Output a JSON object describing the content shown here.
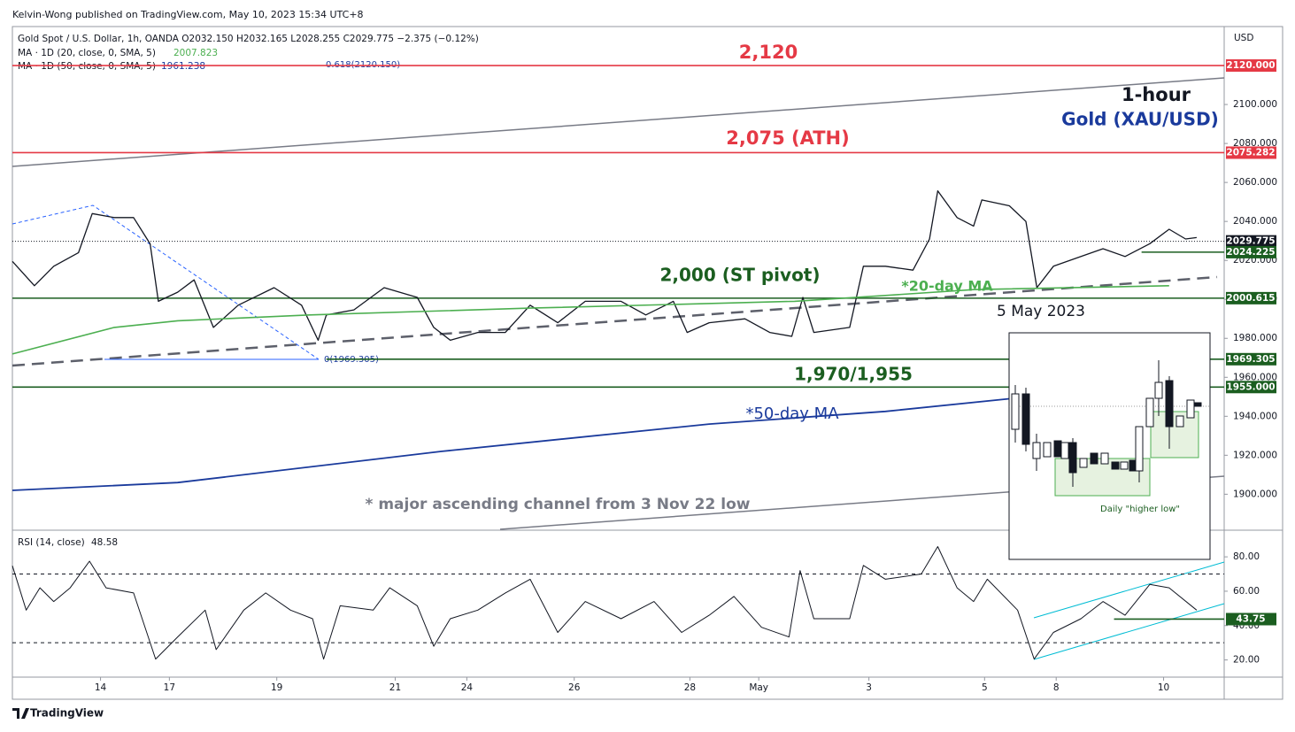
{
  "header": {
    "publisher": "Kelvin-Wong published on TradingView.com, May 10, 2023 15:34 UTC+8",
    "symbol": "Gold Spot / U.S. Dollar, 1h, OANDA  O2032.150  H2032.165  L2028.255  C2029.775  −2.375 (−0.12%)",
    "ma20_label": "MA · 1D (20, close, 0, SMA, 5)",
    "ma20_value": 2007.823,
    "ma50_label": "MA · 1D (50, close, 0, SMA, 5)",
    "ma50_value": 1961.238,
    "fib_top": "0.618(2120.150)",
    "fib_bottom": "0(1969.305)",
    "currency": "USD",
    "brand": "TradingView"
  },
  "chart_data": [
    {
      "type": "line",
      "annotations": [
        "2,120",
        "2,075 (ATH)",
        "1-hour",
        "Gold (XAU/USD)",
        "2,000 (ST pivot)",
        "*20-day MA",
        "5 May 2023",
        "1,970/1,955",
        "*50-day MA",
        "* major ascending channel from 3 Nov 22 low",
        "Daily \"higher low\""
      ],
      "xlim": [
        0,
        440
      ],
      "ylim": [
        1882,
        2140
      ],
      "yticks": [
        {
          "value": 1900,
          "label": "1900.000"
        },
        {
          "value": 1920,
          "label": "1920.000"
        },
        {
          "value": 1940,
          "label": "1940.000"
        },
        {
          "value": 1960,
          "label": "1960.000"
        },
        {
          "value": 1980,
          "label": "1980.000"
        },
        {
          "value": 2000,
          "label": "2000.000"
        },
        {
          "value": 2020,
          "label": "2020.000"
        },
        {
          "value": 2040,
          "label": "2040.000"
        },
        {
          "value": 2060,
          "label": "2060.000"
        },
        {
          "value": 2080,
          "label": "2080.000"
        },
        {
          "value": 2100,
          "label": "2100.000"
        }
      ],
      "levels": [
        {
          "value": 2120,
          "label": "2120.000",
          "color": "#e53945"
        },
        {
          "value": 2075.282,
          "label": "2075.282",
          "color": "#e53945"
        },
        {
          "value": 2029.775,
          "label": "2029.775",
          "color": "#131722",
          "style": "dotted"
        },
        {
          "value": 2024.225,
          "label": "2024.225",
          "color": "#1b5e20",
          "x_start": 410
        },
        {
          "value": 2000.615,
          "label": "2000.615",
          "color": "#1b5e20"
        },
        {
          "value": 1969.305,
          "label": "1969.305",
          "color": "#1b5e20",
          "x_start": 114
        },
        {
          "value": 1955,
          "label": "1955.000",
          "color": "#1b5e20"
        }
      ],
      "series": [
        {
          "name": "Gold Spot / U.S. Dollar",
          "color": "#131722",
          "width": 1.3,
          "x": [
            0,
            8,
            15,
            24,
            29,
            37,
            44,
            50,
            53,
            60,
            66,
            73,
            82,
            95,
            105,
            111,
            114,
            124,
            135,
            147,
            153,
            159,
            169,
            179,
            188,
            198,
            208,
            221,
            230,
            240,
            245,
            253,
            266,
            275,
            283,
            287,
            291,
            304,
            309,
            317,
            327,
            333,
            336,
            343,
            349,
            352,
            362,
            368,
            372,
            378,
            388,
            396,
            404,
            413,
            420,
            426,
            430
          ],
          "values": [
            2019.5,
            2007,
            2017,
            2024,
            2044,
            2042,
            2042,
            2028.5,
            1999,
            2003.7,
            2010,
            1985.6,
            1997,
            2006,
            1997,
            1979,
            1992,
            1994.6,
            2006,
            2001,
            1985.6,
            1979,
            1983,
            1983,
            1997,
            1988,
            1999,
            1999,
            1992,
            1999,
            1983,
            1988,
            1990,
            1983,
            1981,
            2001,
            1983,
            1985.6,
            2017,
            2017,
            2015,
            2031,
            2055.7,
            2042,
            2037.6,
            2051,
            2048,
            2040,
            2006,
            2017,
            2022,
            2026,
            2022,
            2028.6,
            2036,
            2031,
            2031.7
          ]
        },
        {
          "name": "MA 20",
          "color": "#4caf50",
          "width": 1.6,
          "x": [
            0,
            37,
            60,
            108,
            188,
            284,
            317,
            349,
            420
          ],
          "values": [
            1972,
            1985.6,
            1989,
            1992,
            1995.5,
            1999,
            2002,
            2005,
            2007
          ]
        },
        {
          "name": "MA 50",
          "color": "#1a3a9c",
          "width": 1.8,
          "x": [
            0,
            60,
            156,
            253,
            317,
            362
          ],
          "values": [
            1902,
            1906,
            1922,
            1936,
            1942.5,
            1949
          ]
        }
      ]
    },
    {
      "type": "line",
      "title": "RSI (14, close)",
      "last": 48.58,
      "xlim": [
        0,
        440
      ],
      "ylim": [
        10,
        95
      ],
      "xticks": [
        {
          "value": 32,
          "label": "14"
        },
        {
          "value": 57,
          "label": "17"
        },
        {
          "value": 96,
          "label": "19"
        },
        {
          "value": 139,
          "label": "21"
        },
        {
          "value": 165,
          "label": "24"
        },
        {
          "value": 204,
          "label": "26"
        },
        {
          "value": 246,
          "label": "28"
        },
        {
          "value": 271,
          "label": "May"
        },
        {
          "value": 311,
          "label": "3"
        },
        {
          "value": 353,
          "label": "5"
        },
        {
          "value": 379,
          "label": "8"
        },
        {
          "value": 418,
          "label": "10"
        }
      ],
      "yticks": [
        {
          "value": 20,
          "label": "20.00"
        },
        {
          "value": 40,
          "label": "40.00"
        },
        {
          "value": 60,
          "label": "60.00"
        },
        {
          "value": 80,
          "label": "80.00"
        }
      ],
      "bands": [
        30,
        70
      ],
      "levels": [
        {
          "value": 43.75,
          "color": "#1b5e20",
          "x_start": 400
        }
      ],
      "series": [
        {
          "name": "RSI",
          "color": "#131722",
          "width": 1,
          "x": [
            0,
            5,
            10,
            15,
            21,
            28,
            34,
            44,
            52,
            60,
            70,
            74,
            84,
            92,
            101,
            109,
            113,
            119,
            131,
            137,
            147,
            153,
            159,
            169,
            179,
            188,
            198,
            208,
            221,
            233,
            243,
            253,
            262,
            272,
            282,
            286,
            291,
            304,
            309,
            317,
            330,
            336,
            343,
            349,
            354,
            365,
            371,
            378,
            388,
            396,
            404,
            413,
            420,
            430
          ],
          "values": [
            74.8,
            49,
            62,
            54,
            62,
            77.5,
            62,
            59,
            20.5,
            33.4,
            49,
            26,
            49,
            59,
            49,
            44,
            20.5,
            51.5,
            49,
            62,
            51.5,
            28,
            44,
            49,
            59,
            67,
            36,
            54,
            44,
            54,
            36,
            46,
            57,
            39,
            33.4,
            72,
            44,
            44,
            75,
            67,
            70,
            86,
            62,
            54,
            67,
            49,
            20.5,
            36,
            44,
            54,
            46,
            64,
            62,
            49
          ]
        }
      ]
    }
  ]
}
